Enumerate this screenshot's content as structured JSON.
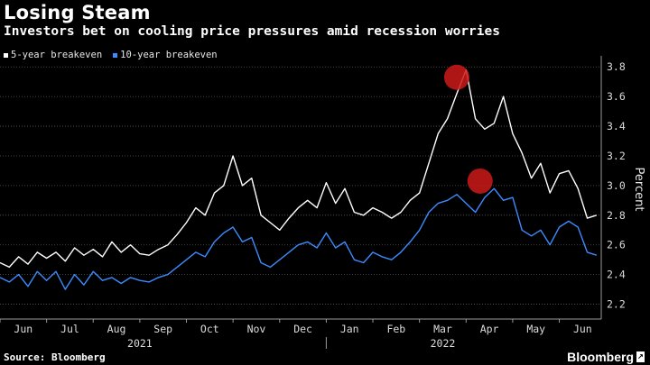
{
  "title": "Losing Steam",
  "subtitle": "Investors bet on cooling price pressures amid recession worries",
  "legend": [
    {
      "label": "5-year breakeven",
      "color": "#ffffff"
    },
    {
      "label": "10-year breakeven",
      "color": "#3d8bff"
    }
  ],
  "source": "Source: Bloomberg",
  "brand": "Bloomberg",
  "chart_data": {
    "type": "line",
    "ylabel": "Percent",
    "ylim": [
      2.1,
      3.85
    ],
    "yticks": [
      2.2,
      2.4,
      2.6,
      2.8,
      3.0,
      3.2,
      3.4,
      3.6,
      3.8
    ],
    "xlim": [
      0,
      12.9
    ],
    "month_labels": [
      "Jun",
      "Jul",
      "Aug",
      "Sep",
      "Oct",
      "Nov",
      "Dec",
      "Jan",
      "Feb",
      "Mar",
      "Apr",
      "May",
      "Jun"
    ],
    "year_labels": [
      {
        "label": "2021",
        "month_index": 3
      },
      {
        "label": "2022",
        "month_index": 9.5
      }
    ],
    "grid": true,
    "series": [
      {
        "name": "5-year breakeven",
        "color": "#ffffff",
        "x": [
          0,
          0.2,
          0.4,
          0.6,
          0.8,
          1.0,
          1.2,
          1.4,
          1.6,
          1.8,
          2.0,
          2.2,
          2.4,
          2.6,
          2.8,
          3.0,
          3.2,
          3.4,
          3.6,
          3.8,
          4.0,
          4.2,
          4.4,
          4.6,
          4.8,
          5.0,
          5.2,
          5.4,
          5.6,
          5.8,
          6.0,
          6.2,
          6.4,
          6.6,
          6.8,
          7.0,
          7.2,
          7.4,
          7.6,
          7.8,
          8.0,
          8.2,
          8.4,
          8.6,
          8.8,
          9.0,
          9.2,
          9.4,
          9.6,
          9.8,
          10.0,
          10.2,
          10.4,
          10.6,
          10.8,
          11.0,
          11.2,
          11.4,
          11.6,
          11.8,
          12.0,
          12.2,
          12.4,
          12.6,
          12.8
        ],
        "values": [
          2.48,
          2.45,
          2.52,
          2.47,
          2.55,
          2.51,
          2.55,
          2.49,
          2.58,
          2.53,
          2.57,
          2.52,
          2.62,
          2.55,
          2.6,
          2.54,
          2.53,
          2.57,
          2.6,
          2.67,
          2.75,
          2.85,
          2.8,
          2.95,
          3.0,
          3.2,
          3.0,
          3.05,
          2.8,
          2.75,
          2.7,
          2.78,
          2.85,
          2.9,
          2.85,
          3.02,
          2.88,
          2.98,
          2.82,
          2.8,
          2.85,
          2.82,
          2.78,
          2.82,
          2.9,
          2.95,
          3.15,
          3.35,
          3.45,
          3.62,
          3.78,
          3.45,
          3.38,
          3.42,
          3.6,
          3.35,
          3.22,
          3.05,
          3.15,
          2.95,
          3.08,
          3.1,
          2.98,
          2.78,
          2.8
        ]
      },
      {
        "name": "10-year breakeven",
        "color": "#3d8bff",
        "x": [
          0,
          0.2,
          0.4,
          0.6,
          0.8,
          1.0,
          1.2,
          1.4,
          1.6,
          1.8,
          2.0,
          2.2,
          2.4,
          2.6,
          2.8,
          3.0,
          3.2,
          3.4,
          3.6,
          3.8,
          4.0,
          4.2,
          4.4,
          4.6,
          4.8,
          5.0,
          5.2,
          5.4,
          5.6,
          5.8,
          6.0,
          6.2,
          6.4,
          6.6,
          6.8,
          7.0,
          7.2,
          7.4,
          7.6,
          7.8,
          8.0,
          8.2,
          8.4,
          8.6,
          8.8,
          9.0,
          9.2,
          9.4,
          9.6,
          9.8,
          10.0,
          10.2,
          10.4,
          10.6,
          10.8,
          11.0,
          11.2,
          11.4,
          11.6,
          11.8,
          12.0,
          12.2,
          12.4,
          12.6,
          12.8
        ],
        "values": [
          2.38,
          2.35,
          2.4,
          2.32,
          2.42,
          2.36,
          2.42,
          2.3,
          2.4,
          2.33,
          2.42,
          2.36,
          2.38,
          2.34,
          2.38,
          2.36,
          2.35,
          2.38,
          2.4,
          2.45,
          2.5,
          2.55,
          2.52,
          2.62,
          2.68,
          2.72,
          2.62,
          2.65,
          2.48,
          2.45,
          2.5,
          2.55,
          2.6,
          2.62,
          2.58,
          2.68,
          2.58,
          2.62,
          2.5,
          2.48,
          2.55,
          2.52,
          2.5,
          2.55,
          2.62,
          2.7,
          2.82,
          2.88,
          2.9,
          2.94,
          2.88,
          2.82,
          2.92,
          2.98,
          2.9,
          2.92,
          2.7,
          2.66,
          2.7,
          2.6,
          2.72,
          2.76,
          2.72,
          2.55,
          2.53
        ]
      }
    ],
    "annotations": [
      {
        "type": "circle",
        "series": "5-year breakeven",
        "x": 9.8,
        "y": 3.73,
        "color": "#cc1a1a"
      },
      {
        "type": "circle",
        "series": "10-year breakeven",
        "x": 10.3,
        "y": 3.03,
        "color": "#cc1a1a"
      }
    ]
  }
}
